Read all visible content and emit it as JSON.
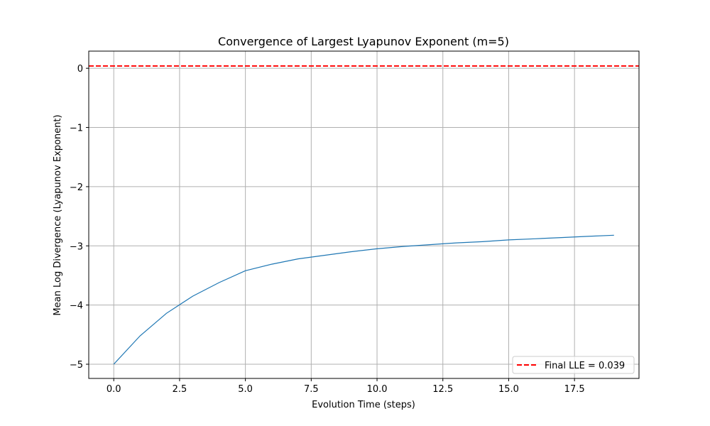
{
  "chart_data": {
    "type": "line",
    "title": "Convergence of Largest Lyapunov Exponent (m=5)",
    "xlabel": "Evolution Time (steps)",
    "ylabel": "Mean Log Divergence (Lyapunov Exponent)",
    "xlim": [
      -0.95,
      19.95
    ],
    "ylim": [
      -5.24,
      0.29
    ],
    "grid": true,
    "legend_position": "lower-right",
    "x_ticks": [
      0.0,
      2.5,
      5.0,
      7.5,
      10.0,
      12.5,
      15.0,
      17.5
    ],
    "x_tick_labels": [
      "0.0",
      "2.5",
      "5.0",
      "7.5",
      "10.0",
      "12.5",
      "15.0",
      "17.5"
    ],
    "y_ticks": [
      -5,
      -4,
      -3,
      -2,
      -1,
      0
    ],
    "y_tick_labels": [
      "−5",
      "−4",
      "−3",
      "−2",
      "−1",
      "0"
    ],
    "series": [
      {
        "color": "#1f77b4",
        "x": [
          0,
          1,
          2,
          3,
          4,
          5,
          6,
          7,
          8,
          9,
          10,
          11,
          12,
          13,
          14,
          15,
          16,
          17,
          18,
          19
        ],
        "y": [
          -5.0,
          -4.52,
          -4.14,
          -3.85,
          -3.62,
          -3.42,
          -3.31,
          -3.22,
          -3.16,
          -3.1,
          -3.05,
          -3.01,
          -2.98,
          -2.95,
          -2.93,
          -2.9,
          -2.88,
          -2.86,
          -2.84,
          -2.82
        ]
      }
    ],
    "reference_lines": [
      {
        "name": "Final LLE = 0.039",
        "orientation": "horizontal",
        "y": 0.039,
        "color": "#ff0000",
        "style": "dashed"
      }
    ]
  }
}
